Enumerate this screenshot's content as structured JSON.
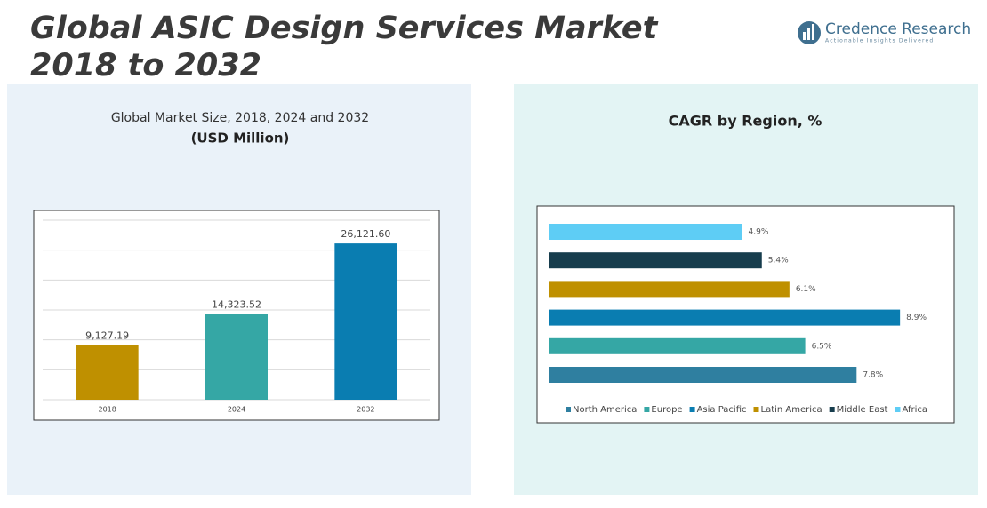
{
  "header": {
    "title_line1": "Global ASIC Design Services Market",
    "title_line2": "2018 to 2032",
    "brand": "Credence Research",
    "tagline": "Actionable Insights Delivered"
  },
  "chart_data": [
    {
      "type": "bar",
      "title": "Global Market Size, 2018, 2024 and 2032",
      "subtitle": "(USD Million)",
      "categories": [
        "2018",
        "2024",
        "2032"
      ],
      "values": [
        9127.19,
        14323.52,
        26121.6
      ],
      "value_labels": [
        "9,127.19",
        "14,323.52",
        "26,121.60"
      ],
      "colors": [
        "#bf9000",
        "#35a7a5",
        "#0a7db1"
      ],
      "ylim": [
        0,
        30000
      ],
      "yticks": [
        0,
        5000,
        10000,
        15000,
        20000,
        25000,
        30000
      ],
      "grid": true
    },
    {
      "type": "hbar",
      "title": "CAGR by Region, %",
      "categories": [
        "North America",
        "Europe",
        "Asia Pacific",
        "Latin America",
        "Middle East",
        "Africa"
      ],
      "values": [
        7.8,
        6.5,
        8.9,
        6.1,
        5.4,
        4.9
      ],
      "value_labels": [
        "7.8%",
        "6.5%",
        "8.9%",
        "6.1%",
        "5.4%",
        "4.9%"
      ],
      "colors": [
        "#2f7fa0",
        "#35a7a5",
        "#0a7db1",
        "#bf9000",
        "#173d4d",
        "#5ecdf5"
      ],
      "xlim": [
        0,
        10
      ],
      "legend": "bottom"
    }
  ]
}
